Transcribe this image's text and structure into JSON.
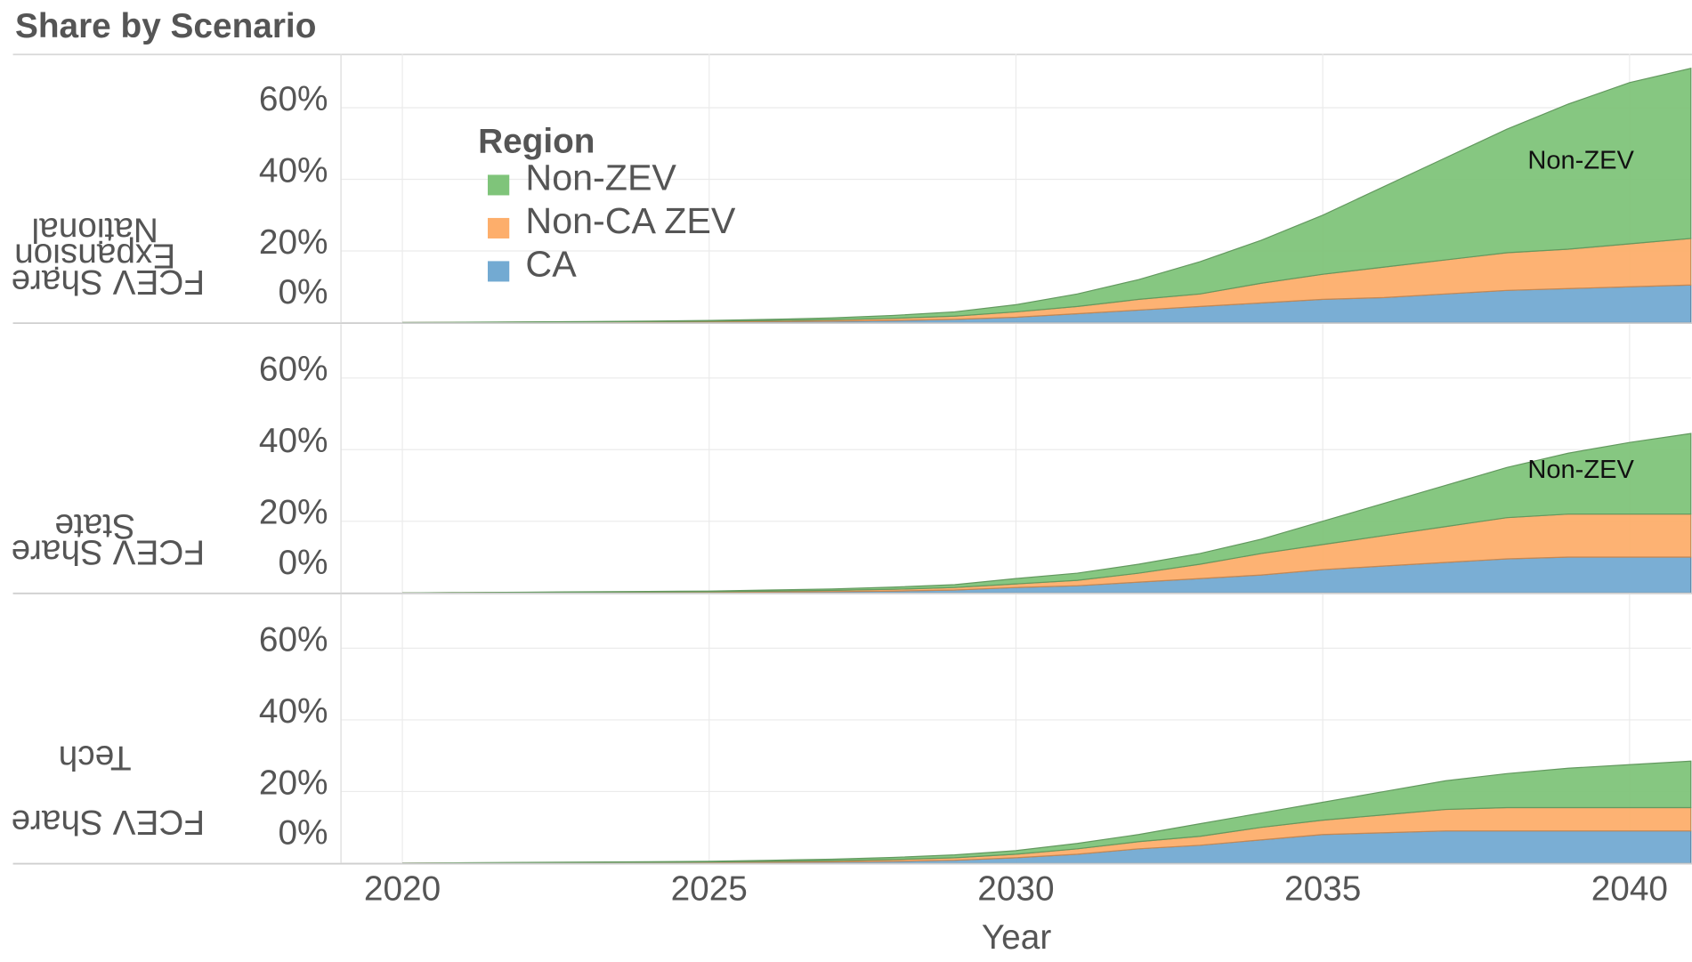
{
  "chart_data": {
    "type": "area",
    "title": "Share by Scenario",
    "xlabel": "Year",
    "legend_title": "Region",
    "x": [
      2020,
      2021,
      2022,
      2023,
      2024,
      2025,
      2026,
      2027,
      2028,
      2029,
      2030,
      2031,
      2032,
      2033,
      2034,
      2035,
      2036,
      2037,
      2038,
      2039,
      2040,
      2041
    ],
    "xlim": [
      2019,
      2041
    ],
    "xticks": [
      2020,
      2025,
      2030,
      2035,
      2040
    ],
    "ylim": [
      0,
      75
    ],
    "yticks": [
      {
        "value": 0,
        "label": "0%"
      },
      {
        "value": 20,
        "label": "20%"
      },
      {
        "value": 40,
        "label": "40%"
      },
      {
        "value": 60,
        "label": "60%"
      }
    ],
    "grid": true,
    "series": [
      {
        "name": "CA",
        "color": "#73aad2"
      },
      {
        "name": "Non-CA ZEV",
        "color": "#fdae6b"
      },
      {
        "name": "Non-ZEV",
        "color": "#7fc47a"
      }
    ],
    "panels": [
      {
        "label": [
          "FCEV Share",
          "Expansion",
          "National"
        ],
        "annotation": "Non-ZEV",
        "values": [
          [
            0,
            0.03,
            0.06,
            0.1,
            0.15,
            0.2,
            0.3,
            0.4,
            0.6,
            0.9,
            1.5,
            2.5,
            3.5,
            4.5,
            5.5,
            6.5,
            7,
            8,
            9,
            9.5,
            10,
            10.5
          ],
          [
            0,
            0.03,
            0.06,
            0.1,
            0.15,
            0.2,
            0.3,
            0.4,
            0.6,
            0.9,
            1.5,
            2,
            3,
            3.5,
            5.5,
            7,
            8.5,
            9.5,
            10.5,
            11,
            12,
            13
          ],
          [
            0,
            0.04,
            0.08,
            0.1,
            0.1,
            0.2,
            0.3,
            0.5,
            0.8,
            1.2,
            2,
            3.5,
            5.5,
            9,
            12,
            16.5,
            22.5,
            28.5,
            34.5,
            40.5,
            45,
            47.5
          ]
        ]
      },
      {
        "label": [
          "FCEV Share",
          "State"
        ],
        "annotation": "Non-ZEV",
        "values": [
          [
            0,
            0.03,
            0.06,
            0.1,
            0.13,
            0.17,
            0.25,
            0.35,
            0.5,
            0.8,
            1.5,
            2,
            3,
            4,
            5,
            6.5,
            7.5,
            8.5,
            9.5,
            10,
            10,
            10
          ],
          [
            0,
            0.03,
            0.06,
            0.1,
            0.13,
            0.17,
            0.25,
            0.35,
            0.5,
            0.7,
            1,
            1.5,
            2.5,
            4,
            6,
            7,
            8.5,
            10,
            11.5,
            12,
            12,
            12
          ],
          [
            0,
            0.04,
            0.08,
            0.1,
            0.14,
            0.16,
            0.3,
            0.4,
            0.6,
            0.8,
            1.5,
            2,
            2.5,
            3,
            4,
            6.5,
            9,
            11.5,
            14,
            17,
            20,
            22.5
          ]
        ]
      },
      {
        "label": [
          "FCEV Share",
          "Tech"
        ],
        "values": [
          [
            0,
            0.03,
            0.06,
            0.1,
            0.13,
            0.17,
            0.25,
            0.35,
            0.5,
            0.8,
            1.5,
            2.5,
            4,
            5,
            6.5,
            8,
            8.5,
            9,
            9,
            9,
            9,
            9
          ],
          [
            0,
            0.03,
            0.06,
            0.1,
            0.13,
            0.17,
            0.25,
            0.35,
            0.5,
            0.7,
            1,
            1.5,
            2,
            2.5,
            3.5,
            4,
            5,
            6,
            6.5,
            6.5,
            6.5,
            6.5
          ],
          [
            0,
            0.04,
            0.08,
            0.1,
            0.14,
            0.16,
            0.3,
            0.4,
            0.6,
            0.8,
            1,
            1.5,
            2,
            3.5,
            4,
            5,
            6.5,
            8,
            9.5,
            11,
            12,
            13
          ]
        ]
      }
    ]
  }
}
